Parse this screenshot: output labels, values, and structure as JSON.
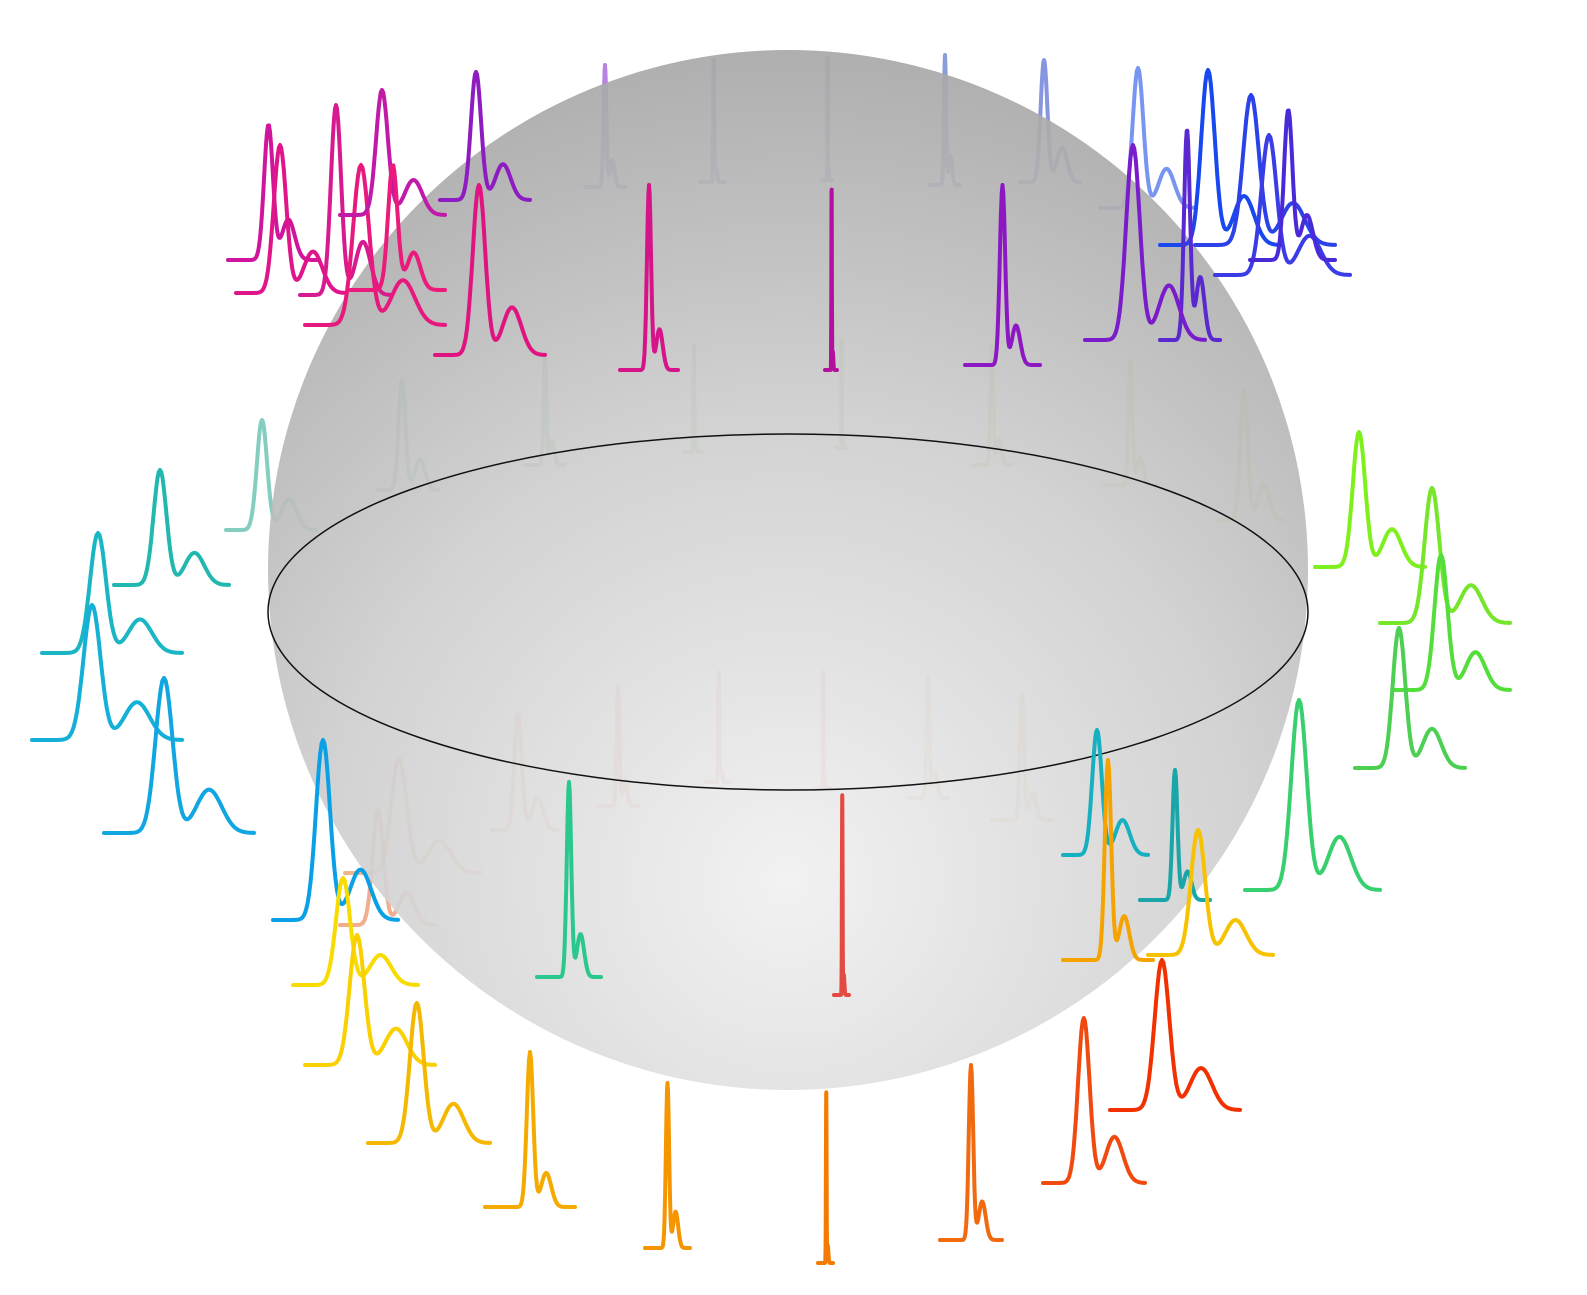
{
  "figure": {
    "sphere": {
      "fill_light": "#f1f1f1",
      "fill_mid": "#cfcfcf",
      "fill_dark": "#a8a8a8",
      "equator_color": "#111111"
    },
    "traces": [
      {
        "color": "#d1149c",
        "layer": "front"
      },
      {
        "color": "#e0158a",
        "layer": "front"
      },
      {
        "color": "#d81a90",
        "layer": "front"
      },
      {
        "color": "#e8197e",
        "layer": "front"
      },
      {
        "color": "#c21aa8",
        "layer": "front"
      },
      {
        "color": "#ec1a7a",
        "layer": "front"
      },
      {
        "color": "#8e1cc0",
        "layer": "front"
      },
      {
        "color": "#7a1ecc",
        "layer": "behind"
      },
      {
        "color": "#6a34c8",
        "layer": "behind"
      },
      {
        "color": "#3d3fb8",
        "layer": "behind"
      },
      {
        "color": "#2b4bc0",
        "layer": "behind"
      },
      {
        "color": "#2440c8",
        "layer": "behind"
      },
      {
        "color": "#0b3ee8",
        "layer": "behind"
      },
      {
        "color": "#1748f0",
        "layer": "front"
      },
      {
        "color": "#2a42e8",
        "layer": "front"
      },
      {
        "color": "#3a3ce6",
        "layer": "front"
      },
      {
        "color": "#4a2ad8",
        "layer": "front"
      },
      {
        "color": "#5a28d0",
        "layer": "front"
      },
      {
        "color": "#e01380",
        "layer": "front"
      },
      {
        "color": "#d41488",
        "layer": "front"
      },
      {
        "color": "#b3119d",
        "layer": "front"
      },
      {
        "color": "#8e17c4",
        "layer": "front"
      },
      {
        "color": "#7a1ccc",
        "layer": "front"
      },
      {
        "color": "#1ea68a",
        "layer": "behind"
      },
      {
        "color": "#2a9a5c",
        "layer": "behind"
      },
      {
        "color": "#3c9c40",
        "layer": "behind"
      },
      {
        "color": "#5caa2a",
        "layer": "behind"
      },
      {
        "color": "#6cb026",
        "layer": "behind"
      },
      {
        "color": "#78b424",
        "layer": "behind"
      },
      {
        "color": "#8cc628",
        "layer": "behind"
      },
      {
        "color": "#96cc2c",
        "layer": "behind"
      },
      {
        "color": "#7ef01e",
        "layer": "front"
      },
      {
        "color": "#76e62a",
        "layer": "front"
      },
      {
        "color": "#54de3c",
        "layer": "front"
      },
      {
        "color": "#4ccf52",
        "layer": "front"
      },
      {
        "color": "#38cf6e",
        "layer": "front"
      },
      {
        "color": "#22b8b0",
        "layer": "front"
      },
      {
        "color": "#1ab6c4",
        "layer": "front"
      },
      {
        "color": "#14b0d8",
        "layer": "front"
      },
      {
        "color": "#10a6e2",
        "layer": "front"
      },
      {
        "color": "#0aa0e8",
        "layer": "front"
      },
      {
        "color": "#e07a2a",
        "layer": "behind"
      },
      {
        "color": "#e66a30",
        "layer": "behind"
      },
      {
        "color": "#e85c34",
        "layer": "behind"
      },
      {
        "color": "#ea503a",
        "layer": "behind"
      },
      {
        "color": "#e04a3e",
        "layer": "behind"
      },
      {
        "color": "#dc4a42",
        "layer": "behind"
      },
      {
        "color": "#e2843a",
        "layer": "behind"
      },
      {
        "color": "#e28a3c",
        "layer": "behind"
      },
      {
        "color": "#16b0c0",
        "layer": "front"
      },
      {
        "color": "#1aa6a8",
        "layer": "front"
      },
      {
        "color": "#2ac88c",
        "layer": "front"
      },
      {
        "color": "#e24a42",
        "layer": "front"
      },
      {
        "color": "#f5a300",
        "layer": "front"
      },
      {
        "color": "#f7c200",
        "layer": "front"
      },
      {
        "color": "#f8dc00",
        "layer": "front"
      },
      {
        "color": "#fad000",
        "layer": "front"
      },
      {
        "color": "#f5b800",
        "layer": "front"
      },
      {
        "color": "#f5aa00",
        "layer": "front"
      },
      {
        "color": "#f59500",
        "layer": "front"
      },
      {
        "color": "#f57a00",
        "layer": "front"
      },
      {
        "color": "#f26a10",
        "layer": "front"
      },
      {
        "color": "#f04a10",
        "layer": "front"
      },
      {
        "color": "#f23000",
        "layer": "front"
      }
    ]
  }
}
